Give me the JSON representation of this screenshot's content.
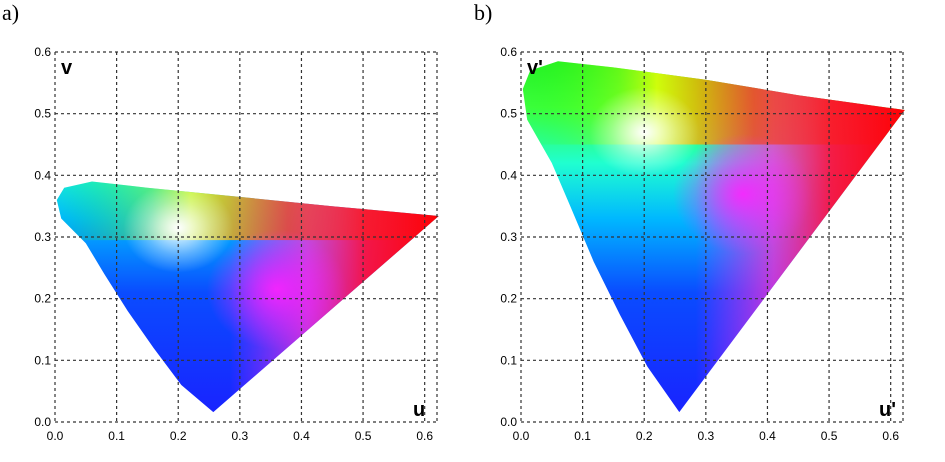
{
  "panels": {
    "a": {
      "label": "a)"
    },
    "b": {
      "label": "b)"
    }
  },
  "chart_data": [
    {
      "type": "area",
      "title": "",
      "panel_label": "a)",
      "xlabel": "u",
      "ylabel": "v",
      "xlim": [
        0.0,
        0.62
      ],
      "ylim": [
        0.0,
        0.6
      ],
      "grid": true,
      "grid_style": "dashed",
      "x_ticks": [
        "0.0",
        "0.1",
        "0.2",
        "0.3",
        "0.4",
        "0.5",
        "0.6"
      ],
      "y_ticks": [
        "0.0",
        "0.1",
        "0.2",
        "0.3",
        "0.4",
        "0.5",
        "0.6"
      ],
      "fill": "CIE 1960 UCS chromaticity gamut (spectral colors)",
      "boundary": [
        [
          0.257,
          0.016
        ],
        [
          0.205,
          0.06
        ],
        [
          0.16,
          0.12
        ],
        [
          0.118,
          0.18
        ],
        [
          0.08,
          0.24
        ],
        [
          0.05,
          0.29
        ],
        [
          0.01,
          0.33
        ],
        [
          0.003,
          0.36
        ],
        [
          0.015,
          0.38
        ],
        [
          0.06,
          0.39
        ],
        [
          0.15,
          0.38
        ],
        [
          0.3,
          0.365
        ],
        [
          0.45,
          0.35
        ],
        [
          0.623,
          0.334
        ]
      ],
      "white_point": [
        0.2,
        0.315
      ]
    },
    {
      "type": "area",
      "title": "",
      "panel_label": "b)",
      "xlabel": "u'",
      "ylabel": "v'",
      "xlim": [
        0.0,
        0.62
      ],
      "ylim": [
        0.0,
        0.6
      ],
      "grid": true,
      "grid_style": "dashed",
      "x_ticks": [
        "0.0",
        "0.1",
        "0.2",
        "0.3",
        "0.4",
        "0.5",
        "0.6"
      ],
      "y_ticks": [
        "0.0",
        "0.1",
        "0.2",
        "0.3",
        "0.4",
        "0.5",
        "0.6"
      ],
      "fill": "CIE 1976 UCS chromaticity gamut (spectral colors)",
      "boundary": [
        [
          0.257,
          0.016
        ],
        [
          0.205,
          0.09
        ],
        [
          0.16,
          0.175
        ],
        [
          0.118,
          0.26
        ],
        [
          0.08,
          0.35
        ],
        [
          0.05,
          0.42
        ],
        [
          0.01,
          0.49
        ],
        [
          0.003,
          0.54
        ],
        [
          0.015,
          0.57
        ],
        [
          0.06,
          0.585
        ],
        [
          0.15,
          0.575
        ],
        [
          0.3,
          0.555
        ],
        [
          0.45,
          0.53
        ],
        [
          0.623,
          0.506
        ]
      ],
      "white_point": [
        0.2,
        0.47
      ]
    }
  ]
}
